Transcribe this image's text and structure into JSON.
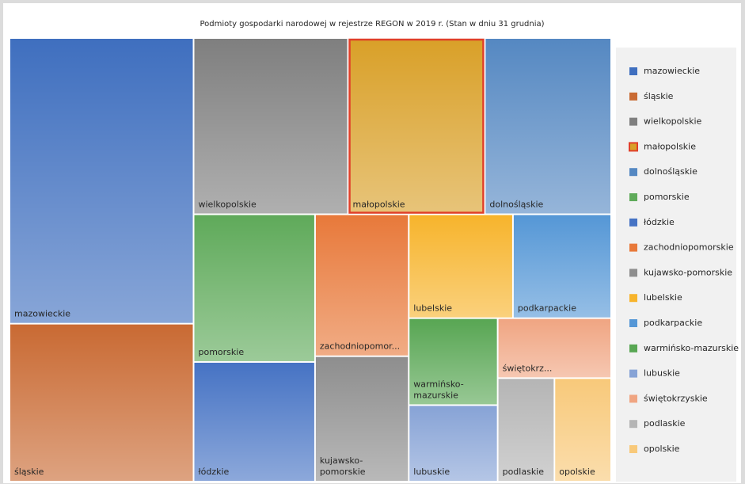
{
  "chart_data": {
    "type": "treemap",
    "title": "Podmioty gospodarki narodowej w rejestrze REGON w 2019 r. (Stan w dniu 31 grudnia)",
    "categories": [
      "mazowieckie",
      "śląskie",
      "wielkopolskie",
      "małopolskie",
      "dolnośląskie",
      "pomorskie",
      "łódzkie",
      "zachodniopomorskie",
      "kujawsko-pomorskie",
      "lubelskie",
      "podkarpackie",
      "warmińsko-mazurskie",
      "lubuskie",
      "świętokrzyskie",
      "podlaskie",
      "opolskie"
    ],
    "tile_labels": [
      [
        "mazowieckie"
      ],
      [
        "śląskie"
      ],
      [
        "wielkopolskie"
      ],
      [
        "małopolskie"
      ],
      [
        "dolnośląskie"
      ],
      [
        "pomorskie"
      ],
      [
        "łódzkie"
      ],
      [
        "zachodniopomor..."
      ],
      [
        "kujawsko-",
        "pomorskie"
      ],
      [
        "lubelskie"
      ],
      [
        "podkarpackie"
      ],
      [
        "warmińsko-",
        "mazurskie"
      ],
      [
        "lubuskie"
      ],
      [
        "świętokrz..."
      ],
      [
        "podlaskie"
      ],
      [
        "opolskie"
      ]
    ],
    "values": [
      850,
      470,
      440,
      390,
      360,
      290,
      235,
      215,
      190,
      175,
      165,
      125,
      110,
      110,
      95,
      95
    ],
    "colors": [
      "#3f6fbf",
      "#c96a33",
      "#7f7f7f",
      "#d9a028",
      "#5588c2",
      "#5faa5a",
      "#4673c4",
      "#e8793a",
      "#8e8e8e",
      "#f7b42c",
      "#5597d6",
      "#58a653",
      "#87a3d6",
      "#f0a582",
      "#b5b5b5",
      "#f8c97a"
    ],
    "highlight": "małopolskie",
    "highlight_color": "#e0402a",
    "legend": "right"
  }
}
